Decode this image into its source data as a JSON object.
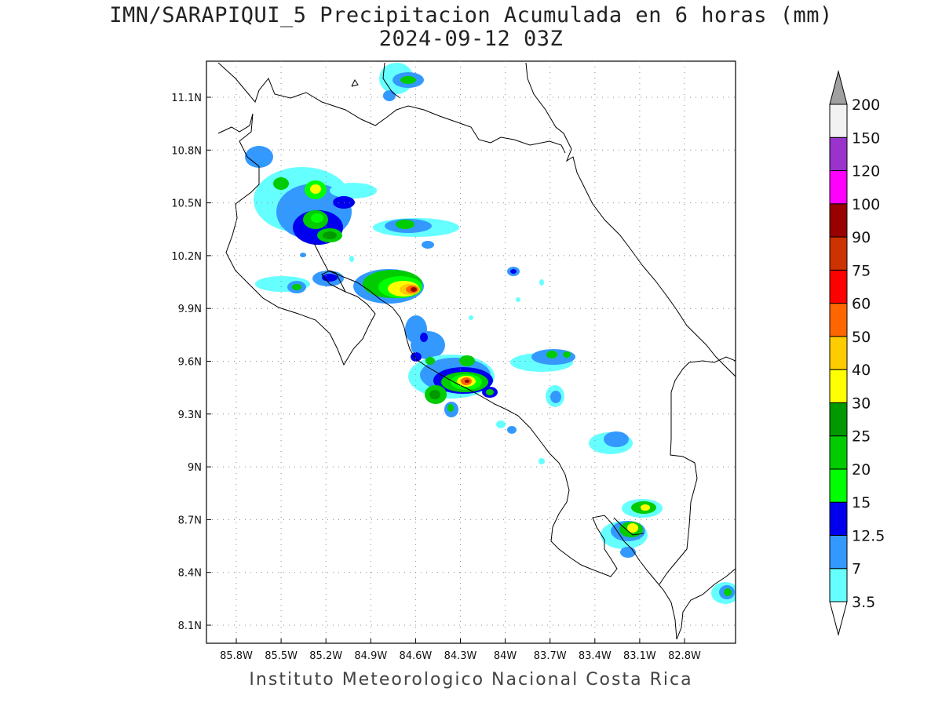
{
  "title": {
    "line1": "IMN/SARAPIQUI_5 Precipitacion Acumulada en 6 horas (mm)",
    "line2": "2024-09-12 03Z"
  },
  "footer": "Instituto Meteorologico Nacional Costa Rica",
  "map": {
    "lon_labels": [
      "85.8W",
      "85.5W",
      "85.2W",
      "84.9W",
      "84.6W",
      "84.3W",
      "84W",
      "83.7W",
      "83.4W",
      "83.1W",
      "82.8W"
    ],
    "lat_labels": [
      "11.1N",
      "10.8N",
      "10.5N",
      "10.2N",
      "9.9N",
      "9.6N",
      "9.3N",
      "9N",
      "8.7N",
      "8.4N",
      "8.1N"
    ],
    "grid": "dotted"
  },
  "colorbar": {
    "levels": [
      "3.5",
      "7",
      "12.5",
      "15",
      "20",
      "25",
      "30",
      "40",
      "50",
      "60",
      "75",
      "90",
      "100",
      "120",
      "150",
      "200"
    ],
    "colors": [
      "#66ffff",
      "#3399ff",
      "#0000ee",
      "#00ff00",
      "#00cc00",
      "#009900",
      "#ffff00",
      "#ffcc00",
      "#ff6600",
      "#ff0000",
      "#cc3300",
      "#990000",
      "#ff00ff",
      "#9933cc",
      "#f2f2f2"
    ],
    "overflow_color": "#a0a0a0",
    "underflow_color": "#ffffff"
  }
}
